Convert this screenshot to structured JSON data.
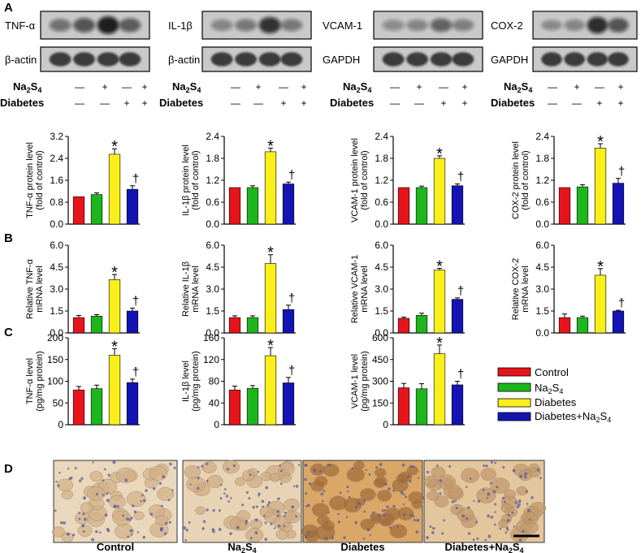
{
  "panels": {
    "A": "A",
    "B": "B",
    "C": "C",
    "D": "D"
  },
  "blots": [
    {
      "target": "TNF-α",
      "loading": "β-actin",
      "intensities": [
        0.35,
        0.55,
        0.95,
        0.5
      ]
    },
    {
      "target": "IL-1β",
      "loading": "β-actin",
      "intensities": [
        0.2,
        0.3,
        0.8,
        0.3
      ]
    },
    {
      "target": "VCAM-1",
      "loading": "GAPDH",
      "intensities": [
        0.15,
        0.2,
        0.45,
        0.25
      ]
    },
    {
      "target": "COX-2",
      "loading": "GAPDH",
      "intensities": [
        0.1,
        0.2,
        0.85,
        0.55
      ]
    }
  ],
  "treatment_rows": [
    {
      "label": "Na",
      "sub": "2",
      "label2": "S",
      "sub2": "4",
      "marks": [
        "—",
        "+",
        "—",
        "+"
      ]
    },
    {
      "label": "Diabetes",
      "marks": [
        "—",
        "—",
        "+",
        "+"
      ]
    }
  ],
  "legend": {
    "control": "Control",
    "na2s4": {
      "base": "Na",
      "sub": "2",
      "mid": "S",
      "sub2": "4"
    },
    "diabetes": "Diabetes",
    "combo": {
      "base": "Diabetes+Na",
      "sub": "2",
      "mid": "S",
      "sub2": "4"
    }
  },
  "colors": {
    "control": "#e8141c",
    "na2s4": "#1db61d",
    "diabetes": "#f9ef1b",
    "combo": "#1414b4"
  },
  "markers": {
    "star": "*",
    "dagger": "†"
  },
  "micrographs": [
    {
      "label": "Control",
      "stain": 0.15
    },
    {
      "label": "Na",
      "sub": "2",
      "label2": "S",
      "sub2": "4",
      "stain": 0.2
    },
    {
      "label": "Diabetes",
      "stain": 0.85
    },
    {
      "label": "Diabetes+Na",
      "sub": "2",
      "label2": "S",
      "sub2": "4",
      "stain": 0.4
    }
  ],
  "chart_data": [
    {
      "type": "bar",
      "panel": "A",
      "ylabel": [
        "TNF-α  protein level",
        "(fold of control)"
      ],
      "ylim": [
        0,
        3.2
      ],
      "yticks": [
        "0.0",
        "0.8",
        "1.6",
        "2.4",
        "3.2"
      ],
      "series": [
        {
          "values": [
            1.0,
            1.08,
            2.55,
            1.27
          ],
          "errors": [
            0.0,
            0.06,
            0.2,
            0.13
          ]
        }
      ],
      "markers": [
        "",
        "",
        "*",
        "†"
      ]
    },
    {
      "type": "bar",
      "panel": "A",
      "ylabel": [
        "IL-1β  protein level",
        "(fold of control)"
      ],
      "ylim": [
        0,
        2.4
      ],
      "yticks": [
        "0.0",
        "0.6",
        "1.2",
        "1.8",
        "2.4"
      ],
      "series": [
        {
          "values": [
            1.0,
            1.0,
            1.98,
            1.1
          ],
          "errors": [
            0.0,
            0.05,
            0.1,
            0.05
          ]
        }
      ],
      "markers": [
        "",
        "",
        "*",
        "†"
      ]
    },
    {
      "type": "bar",
      "panel": "A",
      "ylabel": [
        "VCAM-1  protein level",
        "(fold of control)"
      ],
      "ylim": [
        0,
        2.4
      ],
      "yticks": [
        "0.0",
        "0.6",
        "1.2",
        "1.8",
        "2.4"
      ],
      "series": [
        {
          "values": [
            1.0,
            1.0,
            1.8,
            1.05
          ],
          "errors": [
            0.0,
            0.04,
            0.07,
            0.05
          ]
        }
      ],
      "markers": [
        "",
        "",
        "*",
        "†"
      ]
    },
    {
      "type": "bar",
      "panel": "A",
      "ylabel": [
        "COX-2  protein level",
        "(fold of control)"
      ],
      "ylim": [
        0,
        2.4
      ],
      "yticks": [
        "0.0",
        "0.6",
        "1.2",
        "1.8",
        "2.4"
      ],
      "series": [
        {
          "values": [
            1.0,
            1.02,
            2.08,
            1.12
          ],
          "errors": [
            0.0,
            0.06,
            0.12,
            0.13
          ]
        }
      ],
      "markers": [
        "",
        "",
        "*",
        "†"
      ]
    },
    {
      "type": "bar",
      "panel": "B",
      "ylabel": [
        "Relative TNF-α",
        "mRNA level"
      ],
      "ylim": [
        0,
        6
      ],
      "yticks": [
        "0.0",
        "1.5",
        "3.0",
        "4.5",
        "6.0"
      ],
      "series": [
        {
          "values": [
            1.05,
            1.15,
            3.65,
            1.5
          ],
          "errors": [
            0.15,
            0.1,
            0.35,
            0.2
          ]
        }
      ],
      "markers": [
        "",
        "",
        "*",
        "†"
      ]
    },
    {
      "type": "bar",
      "panel": "B",
      "ylabel": [
        "Relative IL-1β",
        "mRNA level"
      ],
      "ylim": [
        0,
        6
      ],
      "yticks": [
        "0.0",
        "1.5",
        "3.0",
        "4.5",
        "6.0"
      ],
      "series": [
        {
          "values": [
            1.05,
            1.05,
            4.75,
            1.6
          ],
          "errors": [
            0.12,
            0.12,
            0.6,
            0.3
          ]
        }
      ],
      "markers": [
        "",
        "",
        "*",
        "†"
      ]
    },
    {
      "type": "bar",
      "panel": "B",
      "ylabel": [
        "Relative VCAM-1",
        "mRNA level"
      ],
      "ylim": [
        0,
        6
      ],
      "yticks": [
        "0.0",
        "1.5",
        "3.0",
        "4.5",
        "6.0"
      ],
      "series": [
        {
          "values": [
            1.0,
            1.2,
            4.3,
            2.3
          ],
          "errors": [
            0.08,
            0.15,
            0.12,
            0.1
          ]
        }
      ],
      "markers": [
        "",
        "",
        "*",
        "†"
      ]
    },
    {
      "type": "bar",
      "panel": "B",
      "ylabel": [
        "Relative COX-2",
        "mRNA level"
      ],
      "ylim": [
        0,
        6
      ],
      "yticks": [
        "0.0",
        "1.5",
        "3.0",
        "4.5",
        "6.0"
      ],
      "series": [
        {
          "values": [
            1.05,
            1.05,
            3.95,
            1.5
          ],
          "errors": [
            0.25,
            0.1,
            0.45,
            0.05
          ]
        }
      ],
      "markers": [
        "",
        "",
        "*",
        "†"
      ]
    },
    {
      "type": "bar",
      "panel": "C",
      "ylabel": [
        "TNF-α  level",
        "(pg/mg protein)"
      ],
      "ylim": [
        0,
        200
      ],
      "yticks": [
        "0",
        "50",
        "100",
        "150",
        "200"
      ],
      "series": [
        {
          "values": [
            80,
            83,
            160,
            97
          ],
          "errors": [
            8,
            8,
            15,
            8
          ]
        }
      ],
      "markers": [
        "",
        "",
        "*",
        "†"
      ]
    },
    {
      "type": "bar",
      "panel": "C",
      "ylabel": [
        "IL-1β  level",
        "(pg/mg protein)"
      ],
      "ylim": [
        0,
        160
      ],
      "yticks": [
        "0",
        "40",
        "80",
        "120",
        "160"
      ],
      "series": [
        {
          "values": [
            64,
            67,
            127,
            77
          ],
          "errors": [
            7,
            5,
            15,
            10
          ]
        }
      ],
      "markers": [
        "",
        "",
        "*",
        "†"
      ]
    },
    {
      "type": "bar",
      "panel": "C",
      "ylabel": [
        "VCAM-1 level",
        "(pg/mg protein)"
      ],
      "ylim": [
        0,
        600
      ],
      "yticks": [
        "0",
        "150",
        "300",
        "450",
        "600"
      ],
      "series": [
        {
          "values": [
            255,
            248,
            490,
            275
          ],
          "errors": [
            30,
            35,
            60,
            25
          ]
        }
      ],
      "markers": [
        "",
        "",
        "*",
        "†"
      ]
    }
  ]
}
